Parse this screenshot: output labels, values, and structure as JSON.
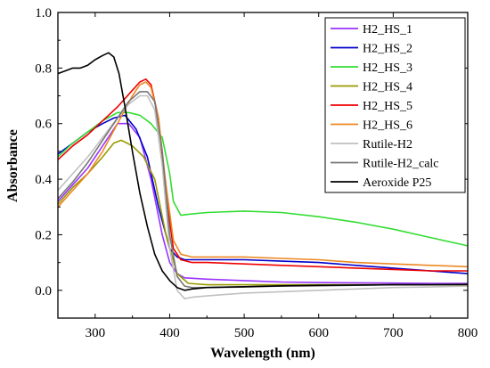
{
  "chart_data": {
    "type": "line",
    "title": "",
    "xlabel": "Wavelength (nm)",
    "ylabel": "Absorbance",
    "xlim": [
      250,
      800
    ],
    "ylim": [
      -0.1,
      1.0
    ],
    "xticks": [
      300,
      400,
      500,
      600,
      700,
      800
    ],
    "yticks": [
      0.0,
      0.2,
      0.4,
      0.6,
      0.8,
      1.0
    ],
    "grid": false,
    "legend_position": "top-right",
    "series": [
      {
        "name": "H2_HS_1",
        "color": "#9933ff",
        "x": [
          250,
          270,
          290,
          310,
          330,
          345,
          360,
          375,
          390,
          400,
          410,
          420,
          450,
          500,
          550,
          600,
          650,
          700,
          750,
          800
        ],
        "y": [
          0.32,
          0.38,
          0.44,
          0.52,
          0.6,
          0.6,
          0.55,
          0.4,
          0.2,
          0.1,
          0.06,
          0.045,
          0.04,
          0.035,
          0.03,
          0.028,
          0.027,
          0.026,
          0.025,
          0.025
        ]
      },
      {
        "name": "H2_HS_2",
        "color": "#0000cc",
        "x": [
          250,
          270,
          290,
          310,
          325,
          340,
          355,
          370,
          385,
          400,
          410,
          420,
          450,
          500,
          550,
          600,
          650,
          700,
          750,
          800
        ],
        "y": [
          0.49,
          0.53,
          0.57,
          0.6,
          0.62,
          0.63,
          0.58,
          0.48,
          0.3,
          0.15,
          0.12,
          0.11,
          0.11,
          0.11,
          0.105,
          0.1,
          0.09,
          0.08,
          0.07,
          0.06
        ]
      },
      {
        "name": "H2_HS_3",
        "color": "#33dd33",
        "x": [
          250,
          270,
          290,
          310,
          330,
          345,
          360,
          375,
          390,
          400,
          405,
          415,
          430,
          450,
          500,
          550,
          600,
          650,
          700,
          750,
          800
        ],
        "y": [
          0.48,
          0.53,
          0.57,
          0.61,
          0.64,
          0.64,
          0.63,
          0.6,
          0.55,
          0.42,
          0.32,
          0.27,
          0.275,
          0.28,
          0.285,
          0.28,
          0.265,
          0.245,
          0.22,
          0.19,
          0.16
        ]
      },
      {
        "name": "H2_HS_4",
        "color": "#999900",
        "x": [
          250,
          270,
          290,
          310,
          325,
          335,
          350,
          365,
          380,
          395,
          410,
          425,
          450,
          500,
          550,
          600,
          650,
          700,
          750,
          800
        ],
        "y": [
          0.31,
          0.37,
          0.42,
          0.48,
          0.53,
          0.54,
          0.52,
          0.48,
          0.4,
          0.2,
          0.06,
          0.025,
          0.02,
          0.02,
          0.02,
          0.02,
          0.02,
          0.02,
          0.02,
          0.02
        ]
      },
      {
        "name": "H2_HS_5",
        "color": "#ee0000",
        "x": [
          250,
          270,
          290,
          310,
          330,
          350,
          360,
          368,
          375,
          385,
          395,
          405,
          415,
          430,
          450,
          500,
          550,
          600,
          650,
          700,
          750,
          800
        ],
        "y": [
          0.47,
          0.52,
          0.56,
          0.61,
          0.66,
          0.72,
          0.75,
          0.76,
          0.74,
          0.62,
          0.35,
          0.15,
          0.11,
          0.1,
          0.1,
          0.095,
          0.09,
          0.085,
          0.08,
          0.075,
          0.07,
          0.07
        ]
      },
      {
        "name": "H2_HS_6",
        "color": "#ee8822",
        "x": [
          250,
          270,
          290,
          310,
          330,
          350,
          360,
          368,
          375,
          385,
          395,
          405,
          415,
          430,
          450,
          500,
          550,
          600,
          650,
          700,
          750,
          800
        ],
        "y": [
          0.3,
          0.36,
          0.42,
          0.5,
          0.6,
          0.7,
          0.74,
          0.75,
          0.73,
          0.62,
          0.38,
          0.18,
          0.13,
          0.12,
          0.12,
          0.12,
          0.115,
          0.11,
          0.1,
          0.095,
          0.09,
          0.085
        ]
      },
      {
        "name": "Rutile-H2",
        "color": "#c0c0c0",
        "x": [
          250,
          270,
          290,
          310,
          330,
          345,
          360,
          370,
          380,
          390,
          400,
          410,
          420,
          430,
          450,
          500,
          550,
          600,
          650,
          700,
          750,
          800
        ],
        "y": [
          0.36,
          0.42,
          0.48,
          0.55,
          0.62,
          0.67,
          0.7,
          0.7,
          0.65,
          0.45,
          0.15,
          0.0,
          -0.03,
          -0.025,
          -0.02,
          -0.01,
          -0.005,
          0.0,
          0.005,
          0.01,
          0.012,
          0.015
        ]
      },
      {
        "name": "Rutile-H2_calc",
        "color": "#777777",
        "x": [
          250,
          270,
          290,
          310,
          330,
          345,
          360,
          370,
          380,
          390,
          400,
          410,
          420,
          430,
          450,
          500,
          550,
          600,
          650,
          700,
          750,
          800
        ],
        "y": [
          0.33,
          0.39,
          0.46,
          0.54,
          0.62,
          0.68,
          0.715,
          0.715,
          0.68,
          0.5,
          0.2,
          0.05,
          0.015,
          0.01,
          0.01,
          0.012,
          0.015,
          0.016,
          0.018,
          0.02,
          0.021,
          0.022
        ]
      },
      {
        "name": "Aeroxide P25",
        "color": "#000000",
        "x": [
          250,
          260,
          270,
          280,
          290,
          300,
          310,
          318,
          325,
          332,
          340,
          350,
          360,
          370,
          380,
          390,
          400,
          410,
          420,
          430,
          450,
          500,
          550,
          600,
          650,
          700,
          750,
          800
        ],
        "y": [
          0.78,
          0.79,
          0.8,
          0.8,
          0.81,
          0.83,
          0.845,
          0.855,
          0.84,
          0.78,
          0.66,
          0.5,
          0.35,
          0.23,
          0.13,
          0.07,
          0.035,
          0.01,
          0.0,
          0.005,
          0.01,
          0.013,
          0.016,
          0.018,
          0.019,
          0.02,
          0.02,
          0.021
        ]
      }
    ]
  }
}
